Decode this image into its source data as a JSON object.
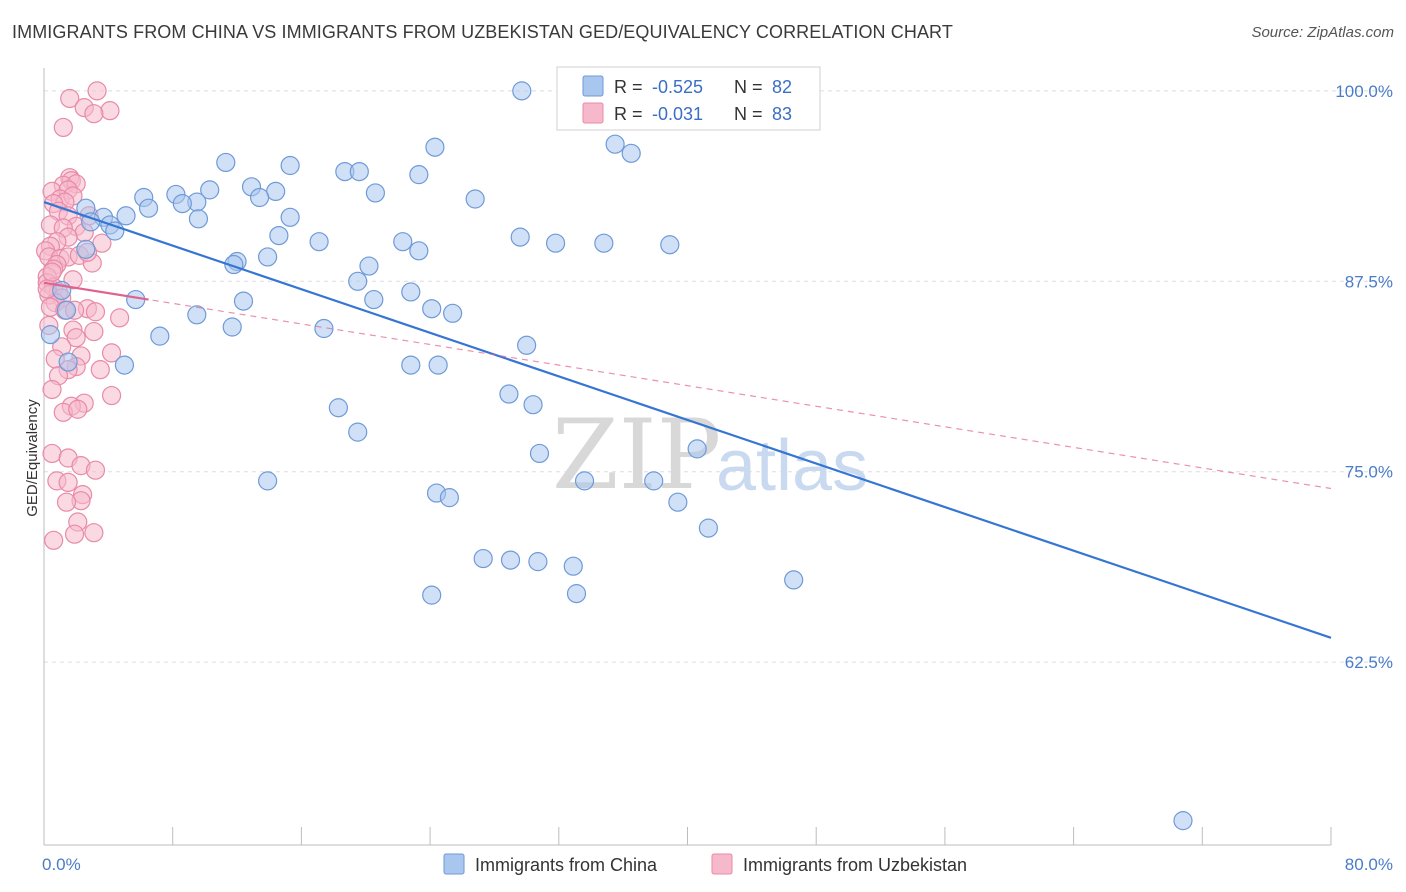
{
  "title": "IMMIGRANTS FROM CHINA VS IMMIGRANTS FROM UZBEKISTAN GED/EQUIVALENCY CORRELATION CHART",
  "source": "Source: ZipAtlas.com",
  "watermark": {
    "zip": "ZIP",
    "atlas": "atlas"
  },
  "colors": {
    "china_fill": "#a9c6ee",
    "china_stroke": "#6f9ad8",
    "china_line": "#3575d3",
    "uzbek_fill": "#f6b9cc",
    "uzbek_stroke": "#e88aa8",
    "uzbek_line": "#e0628e",
    "tick_label": "#4a7cc8",
    "grid": "#dddddd"
  },
  "legend": {
    "rows": [
      {
        "r_label": "R =",
        "r_value": "-0.525",
        "n_label": "N =",
        "n_value": "82",
        "series": "china"
      },
      {
        "r_label": "R =",
        "r_value": "-0.031",
        "n_label": "N =",
        "n_value": "83",
        "series": "uzbek"
      }
    ]
  },
  "chart_data": {
    "type": "scatter",
    "title": "IMMIGRANTS FROM CHINA VS IMMIGRANTS FROM UZBEKISTAN GED/EQUIVALENCY CORRELATION CHART",
    "xlabel": "",
    "ylabel": "GED/Equivalency",
    "xlim": [
      0,
      80
    ],
    "ylim": [
      50.5,
      101.5
    ],
    "x_tick_labels": [
      {
        "value": 0,
        "label": "0.0%"
      },
      {
        "value": 80,
        "label": "80.0%"
      }
    ],
    "y_tick_labels": [
      {
        "value": 100,
        "label": "100.0%"
      },
      {
        "value": 87.5,
        "label": "87.5%"
      },
      {
        "value": 75,
        "label": "75.0%"
      },
      {
        "value": 62.5,
        "label": "62.5%"
      }
    ],
    "x_minor_ticks": [
      0,
      8,
      16,
      24,
      32,
      40,
      48,
      56,
      64,
      72,
      80
    ],
    "grid": true,
    "legend_position": "top-center",
    "series": [
      {
        "name": "Immigrants from China",
        "key": "china",
        "trend": {
          "x0": 0,
          "y0": 92.7,
          "x1": 80,
          "y1": 64.1,
          "style": "solid"
        },
        "points": [
          [
            29.7,
            100.0
          ],
          [
            32.9,
            100.0
          ],
          [
            35.5,
            96.5
          ],
          [
            24.3,
            96.3
          ],
          [
            36.5,
            95.9
          ],
          [
            11.3,
            95.3
          ],
          [
            15.3,
            95.1
          ],
          [
            18.7,
            94.7
          ],
          [
            19.6,
            94.7
          ],
          [
            23.3,
            94.5
          ],
          [
            12.9,
            93.7
          ],
          [
            10.3,
            93.5
          ],
          [
            14.4,
            93.4
          ],
          [
            20.6,
            93.3
          ],
          [
            8.2,
            93.2
          ],
          [
            6.2,
            93.0
          ],
          [
            26.8,
            92.9
          ],
          [
            13.4,
            93.0
          ],
          [
            9.5,
            92.7
          ],
          [
            8.6,
            92.6
          ],
          [
            6.5,
            92.3
          ],
          [
            2.6,
            92.3
          ],
          [
            5.1,
            91.8
          ],
          [
            3.7,
            91.7
          ],
          [
            9.6,
            91.6
          ],
          [
            15.3,
            91.7
          ],
          [
            2.9,
            91.4
          ],
          [
            4.1,
            91.2
          ],
          [
            4.4,
            90.8
          ],
          [
            14.6,
            90.5
          ],
          [
            29.6,
            90.4
          ],
          [
            22.3,
            90.1
          ],
          [
            17.1,
            90.1
          ],
          [
            31.8,
            90.0
          ],
          [
            34.8,
            90.0
          ],
          [
            38.9,
            89.9
          ],
          [
            23.3,
            89.5
          ],
          [
            2.6,
            89.6
          ],
          [
            13.9,
            89.1
          ],
          [
            12.0,
            88.8
          ],
          [
            11.8,
            88.6
          ],
          [
            20.2,
            88.5
          ],
          [
            19.5,
            87.5
          ],
          [
            22.8,
            86.8
          ],
          [
            12.4,
            86.2
          ],
          [
            20.5,
            86.3
          ],
          [
            24.1,
            85.7
          ],
          [
            25.4,
            85.4
          ],
          [
            5.7,
            86.3
          ],
          [
            9.5,
            85.3
          ],
          [
            1.1,
            86.9
          ],
          [
            1.4,
            85.6
          ],
          [
            11.7,
            84.5
          ],
          [
            17.4,
            84.4
          ],
          [
            7.2,
            83.9
          ],
          [
            30.0,
            83.3
          ],
          [
            5.0,
            82.0
          ],
          [
            24.5,
            82.0
          ],
          [
            22.8,
            82.0
          ],
          [
            1.5,
            82.2
          ],
          [
            28.9,
            80.1
          ],
          [
            18.3,
            79.2
          ],
          [
            30.4,
            79.4
          ],
          [
            19.5,
            77.6
          ],
          [
            40.6,
            76.5
          ],
          [
            30.8,
            76.2
          ],
          [
            33.6,
            74.4
          ],
          [
            37.9,
            74.4
          ],
          [
            13.9,
            74.4
          ],
          [
            24.4,
            73.6
          ],
          [
            25.2,
            73.3
          ],
          [
            39.4,
            73.0
          ],
          [
            41.3,
            71.3
          ],
          [
            27.3,
            69.3
          ],
          [
            29.0,
            69.2
          ],
          [
            32.9,
            68.8
          ],
          [
            30.7,
            69.1
          ],
          [
            24.1,
            66.9
          ],
          [
            46.6,
            67.9
          ],
          [
            33.1,
            67.0
          ],
          [
            70.8,
            52.1
          ],
          [
            0.4,
            84.0
          ]
        ]
      },
      {
        "name": "Immigrants from Uzbekistan",
        "key": "uzbek",
        "trend": {
          "x0": 0,
          "y0": 87.4,
          "x1": 80,
          "y1": 73.9,
          "style": "dashed",
          "solid_until_x": 6.5
        },
        "points": [
          [
            3.3,
            100.0
          ],
          [
            1.6,
            99.5
          ],
          [
            2.5,
            98.9
          ],
          [
            4.1,
            98.7
          ],
          [
            3.1,
            98.5
          ],
          [
            1.2,
            97.6
          ],
          [
            1.6,
            94.3
          ],
          [
            1.7,
            94.1
          ],
          [
            1.2,
            93.8
          ],
          [
            0.5,
            93.4
          ],
          [
            2.0,
            93.9
          ],
          [
            1.5,
            93.5
          ],
          [
            1.0,
            92.9
          ],
          [
            1.8,
            93.1
          ],
          [
            1.3,
            92.7
          ],
          [
            0.6,
            92.6
          ],
          [
            0.9,
            92.1
          ],
          [
            1.5,
            91.8
          ],
          [
            2.8,
            91.8
          ],
          [
            2.0,
            91.1
          ],
          [
            0.4,
            91.2
          ],
          [
            1.2,
            91.0
          ],
          [
            2.5,
            90.7
          ],
          [
            1.5,
            90.4
          ],
          [
            0.8,
            90.1
          ],
          [
            3.6,
            90.0
          ],
          [
            0.4,
            89.8
          ],
          [
            0.1,
            89.5
          ],
          [
            0.3,
            89.1
          ],
          [
            1.0,
            89.0
          ],
          [
            1.5,
            89.1
          ],
          [
            2.2,
            89.2
          ],
          [
            0.8,
            88.6
          ],
          [
            3.0,
            88.7
          ],
          [
            0.6,
            88.3
          ],
          [
            0.2,
            87.8
          ],
          [
            0.2,
            87.4
          ],
          [
            1.8,
            87.6
          ],
          [
            0.6,
            87.1
          ],
          [
            0.9,
            86.8
          ],
          [
            0.3,
            86.6
          ],
          [
            1.1,
            86.4
          ],
          [
            0.7,
            86.1
          ],
          [
            0.4,
            85.8
          ],
          [
            1.3,
            85.6
          ],
          [
            2.7,
            85.7
          ],
          [
            3.2,
            85.5
          ],
          [
            1.9,
            85.6
          ],
          [
            4.7,
            85.1
          ],
          [
            0.3,
            84.6
          ],
          [
            1.8,
            84.3
          ],
          [
            3.1,
            84.2
          ],
          [
            2.0,
            83.8
          ],
          [
            1.1,
            83.2
          ],
          [
            2.3,
            82.6
          ],
          [
            0.7,
            82.4
          ],
          [
            4.2,
            82.8
          ],
          [
            2.0,
            81.9
          ],
          [
            1.5,
            81.7
          ],
          [
            3.5,
            81.7
          ],
          [
            0.9,
            81.3
          ],
          [
            0.5,
            80.4
          ],
          [
            4.2,
            80.0
          ],
          [
            2.5,
            79.5
          ],
          [
            1.7,
            79.3
          ],
          [
            1.2,
            78.9
          ],
          [
            2.1,
            79.1
          ],
          [
            0.5,
            76.2
          ],
          [
            1.5,
            75.9
          ],
          [
            2.3,
            75.4
          ],
          [
            0.8,
            74.4
          ],
          [
            1.5,
            74.3
          ],
          [
            3.2,
            75.1
          ],
          [
            2.4,
            73.5
          ],
          [
            2.3,
            73.1
          ],
          [
            1.4,
            73.0
          ],
          [
            2.1,
            71.7
          ],
          [
            3.1,
            71.0
          ],
          [
            0.6,
            70.5
          ],
          [
            1.9,
            70.9
          ],
          [
            0.2,
            87.0
          ],
          [
            0.5,
            88.1
          ],
          [
            2.7,
            89.4
          ]
        ]
      }
    ]
  }
}
